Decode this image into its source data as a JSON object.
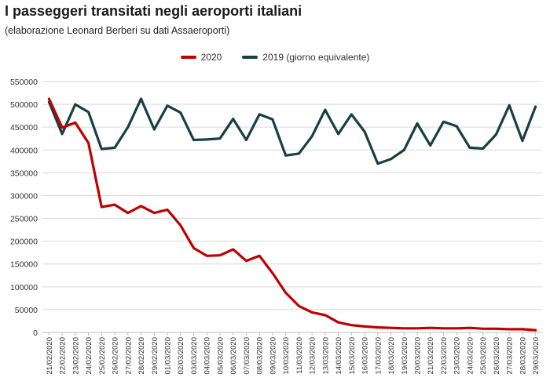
{
  "header": {
    "title": "I passeggeri transitati negli aeroporti italiani",
    "subtitle": "(elaborazione Leonard Berberi su dati Assaeroporti)"
  },
  "colors": {
    "series_2020": "#c00000",
    "series_2019": "#173f45",
    "grid": "#d9d9d9",
    "axis": "#333333"
  },
  "chart_data": {
    "type": "line",
    "title": "I passeggeri transitati negli aeroporti italiani",
    "subtitle": "(elaborazione Leonard Berberi su dati Assaeroporti)",
    "xlabel": "",
    "ylabel": "",
    "ylim": [
      0,
      550000
    ],
    "yticks": [
      "0",
      "50000",
      "100000",
      "150000",
      "200000",
      "250000",
      "300000",
      "350000",
      "400000",
      "450000",
      "500000",
      "550000"
    ],
    "grid": true,
    "legend_position": "top-center",
    "categories": [
      "21/02/2020",
      "22/02/2020",
      "23/02/2020",
      "24/02/2020",
      "25/02/2020",
      "26/02/2020",
      "27/02/2020",
      "28/02/2020",
      "29/02/2020",
      "01/03/2020",
      "02/03/2020",
      "03/03/2020",
      "04/03/2020",
      "05/03/2020",
      "06/03/2020",
      "07/03/2020",
      "08/03/2020",
      "09/03/2020",
      "10/03/2020",
      "11/03/2020",
      "12/03/2020",
      "13/03/2020",
      "14/03/2020",
      "15/03/2020",
      "16/03/2020",
      "17/03/2020",
      "18/03/2020",
      "19/03/2020",
      "20/03/2020",
      "21/03/2020",
      "22/03/2020",
      "23/03/2020",
      "24/03/2020",
      "25/03/2020",
      "26/03/2020",
      "27/03/2020",
      "28/03/2020",
      "29/03/2020"
    ],
    "series": [
      {
        "name": "2020",
        "color": "#c00000",
        "values": [
          512000,
          449000,
          460000,
          415000,
          275000,
          280000,
          262000,
          277000,
          262000,
          269000,
          235000,
          185000,
          168000,
          169000,
          182000,
          157000,
          168000,
          130000,
          87000,
          58000,
          44000,
          38000,
          22000,
          16000,
          13000,
          11000,
          10000,
          9000,
          9000,
          10000,
          9000,
          9000,
          10000,
          8000,
          8000,
          7000,
          7000,
          5000
        ]
      },
      {
        "name": "2019 (giorno equivalente)",
        "color": "#173f45",
        "values": [
          505000,
          435000,
          500000,
          483000,
          402000,
          405000,
          450000,
          512000,
          445000,
          497000,
          482000,
          422000,
          423000,
          425000,
          468000,
          422000,
          478000,
          467000,
          388000,
          392000,
          430000,
          488000,
          435000,
          478000,
          440000,
          370000,
          380000,
          400000,
          458000,
          410000,
          462000,
          452000,
          405000,
          403000,
          434000,
          498000,
          420000,
          495000
        ]
      }
    ]
  }
}
